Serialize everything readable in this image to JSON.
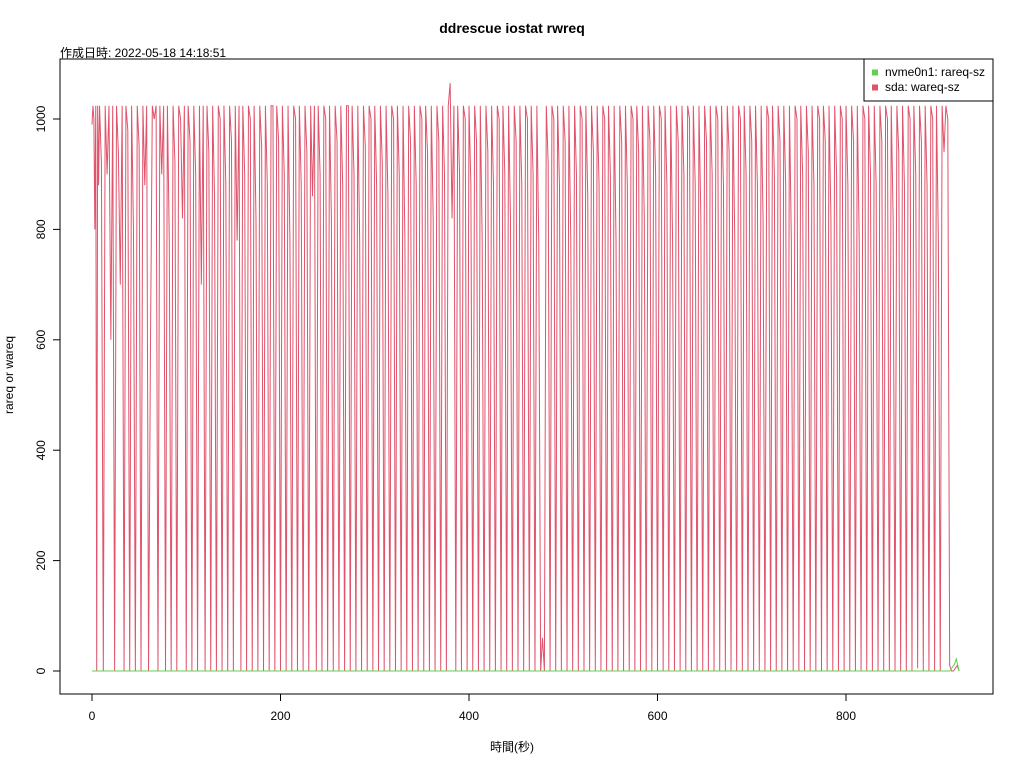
{
  "chart_data": {
    "type": "line",
    "title": "ddrescue iostat rwreq",
    "subtitle": "作成日時: 2022-05-18 14:18:51",
    "xlabel": "時間(秒)",
    "ylabel": "rareq or wareq",
    "xlim": [
      0,
      920
    ],
    "ylim": [
      0,
      1065
    ],
    "x_ticks": [
      0,
      200,
      400,
      600,
      800
    ],
    "y_ticks": [
      0,
      200,
      400,
      600,
      800,
      1000
    ],
    "grid": false,
    "legend_position": "top-right",
    "series": [
      {
        "name": "nvme0n1: rareq-sz",
        "color": "#61d04f",
        "x": [
          0,
          40,
          80,
          120,
          160,
          200,
          240,
          280,
          320,
          360,
          400,
          440,
          480,
          520,
          560,
          600,
          640,
          680,
          720,
          760,
          800,
          840,
          880,
          900,
          905,
          910,
          915,
          917,
          920
        ],
        "values": [
          0,
          0,
          0,
          0,
          0,
          0,
          0,
          0,
          0,
          0,
          0,
          0,
          0,
          0,
          0,
          0,
          0,
          0,
          0,
          0,
          0,
          0,
          0,
          0,
          0,
          0,
          12,
          22,
          0
        ]
      },
      {
        "name": "sda: wareq-sz",
        "color": "#df536b",
        "x": [
          0,
          1,
          2,
          3,
          4,
          5,
          6,
          7,
          8,
          10,
          12,
          14,
          16,
          18,
          20,
          22,
          24,
          26,
          28,
          30,
          32,
          34,
          36,
          38,
          40,
          42,
          44,
          46,
          48,
          50,
          52,
          54,
          56,
          58,
          60,
          62,
          64,
          66,
          68,
          70,
          72,
          74,
          76,
          78,
          80,
          82,
          84,
          86,
          88,
          90,
          92,
          94,
          96,
          98,
          100,
          102,
          104,
          106,
          108,
          110,
          112,
          114,
          116,
          118,
          120,
          122,
          124,
          126,
          128,
          130,
          132,
          134,
          136,
          138,
          140,
          142,
          144,
          146,
          148,
          150,
          152,
          154,
          156,
          158,
          160,
          162,
          164,
          166,
          168,
          170,
          172,
          174,
          176,
          178,
          180,
          182,
          184,
          186,
          188,
          190,
          192,
          194,
          196,
          198,
          200,
          202,
          204,
          206,
          208,
          210,
          212,
          214,
          216,
          218,
          220,
          222,
          224,
          226,
          228,
          230,
          232,
          234,
          236,
          238,
          240,
          242,
          244,
          246,
          248,
          250,
          252,
          254,
          256,
          258,
          260,
          262,
          264,
          266,
          268,
          270,
          272,
          274,
          276,
          278,
          280,
          282,
          284,
          286,
          288,
          290,
          292,
          294,
          296,
          298,
          300,
          302,
          304,
          306,
          308,
          310,
          312,
          314,
          316,
          318,
          320,
          322,
          324,
          326,
          328,
          330,
          332,
          334,
          336,
          338,
          340,
          342,
          344,
          346,
          348,
          350,
          352,
          354,
          356,
          358,
          360,
          362,
          364,
          366,
          368,
          370,
          372,
          374,
          376,
          378,
          380,
          382,
          384,
          386,
          388,
          390,
          392,
          394,
          396,
          398,
          400,
          402,
          404,
          406,
          408,
          410,
          412,
          414,
          416,
          418,
          420,
          422,
          424,
          426,
          428,
          430,
          432,
          434,
          436,
          438,
          440,
          442,
          444,
          446,
          448,
          450,
          452,
          454,
          456,
          458,
          460,
          462,
          464,
          466,
          468,
          470,
          472,
          474,
          476,
          478,
          480,
          482,
          484,
          486,
          488,
          490,
          492,
          494,
          496,
          498,
          500,
          502,
          504,
          506,
          508,
          510,
          512,
          514,
          516,
          518,
          520,
          522,
          524,
          526,
          528,
          530,
          532,
          534,
          536,
          538,
          540,
          542,
          544,
          546,
          548,
          550,
          552,
          554,
          556,
          558,
          560,
          562,
          564,
          566,
          568,
          570,
          572,
          574,
          576,
          578,
          580,
          582,
          584,
          586,
          588,
          590,
          592,
          594,
          596,
          598,
          600,
          602,
          604,
          606,
          608,
          610,
          612,
          614,
          616,
          618,
          620,
          622,
          624,
          626,
          628,
          630,
          632,
          634,
          636,
          638,
          640,
          642,
          644,
          646,
          648,
          650,
          652,
          654,
          656,
          658,
          660,
          662,
          664,
          666,
          668,
          670,
          672,
          674,
          676,
          678,
          680,
          682,
          684,
          686,
          688,
          690,
          692,
          694,
          696,
          698,
          700,
          702,
          704,
          706,
          708,
          710,
          712,
          714,
          716,
          718,
          720,
          722,
          724,
          726,
          728,
          730,
          732,
          734,
          736,
          738,
          740,
          742,
          744,
          746,
          748,
          750,
          752,
          754,
          756,
          758,
          760,
          762,
          764,
          766,
          768,
          770,
          772,
          774,
          776,
          778,
          780,
          782,
          784,
          786,
          788,
          790,
          792,
          794,
          796,
          798,
          800,
          802,
          804,
          806,
          808,
          810,
          812,
          814,
          816,
          818,
          820,
          822,
          824,
          826,
          828,
          830,
          832,
          834,
          836,
          838,
          840,
          842,
          844,
          846,
          848,
          850,
          852,
          854,
          856,
          858,
          860,
          862,
          864,
          866,
          868,
          870,
          872,
          874,
          876,
          878,
          880,
          882,
          884,
          886,
          888,
          890,
          892,
          894,
          896,
          898,
          900,
          902,
          904,
          906,
          908,
          910,
          912,
          914,
          916,
          918,
          920
        ],
        "values": [
          990,
          1024,
          1000,
          800,
          1024,
          0,
          1024,
          880,
          1024,
          920,
          0,
          1024,
          900,
          1024,
          600,
          1024,
          0,
          1024,
          940,
          700,
          1024,
          0,
          1024,
          980,
          0,
          1024,
          800,
          0,
          1024,
          950,
          0,
          1024,
          880,
          1024,
          0,
          580,
          1024,
          1000,
          1024,
          0,
          1024,
          900,
          1024,
          0,
          1024,
          780,
          0,
          1024,
          920,
          0,
          1024,
          1000,
          820,
          1024,
          0,
          1024,
          960,
          0,
          1024,
          900,
          0,
          1024,
          700,
          1024,
          0,
          1024,
          940,
          0,
          1024,
          860,
          0,
          1024,
          1000,
          0,
          1024,
          880,
          0,
          1024,
          960,
          0,
          1024,
          780,
          1024,
          0,
          1024,
          900,
          0,
          1024,
          1000,
          0,
          1024,
          820,
          0,
          1024,
          950,
          0,
          1024,
          880,
          0,
          1024,
          1024,
          0,
          1024,
          960,
          0,
          1024,
          900,
          0,
          1024,
          780,
          0,
          1024,
          1000,
          0,
          1024,
          880,
          0,
          1024,
          940,
          0,
          1024,
          860,
          1024,
          0,
          1024,
          900,
          0,
          1024,
          1000,
          0,
          1024,
          820,
          0,
          1024,
          960,
          0,
          1024,
          880,
          0,
          1024,
          1024,
          0,
          1024,
          900,
          0,
          1024,
          780,
          0,
          1024,
          950,
          0,
          1024,
          1000,
          0,
          1024,
          880,
          0,
          1024,
          920,
          0,
          1024,
          860,
          0,
          1024,
          1000,
          0,
          1024,
          900,
          0,
          1024,
          780,
          0,
          1024,
          960,
          0,
          1024,
          880,
          0,
          1024,
          1000,
          0,
          1024,
          940,
          0,
          1024,
          820,
          0,
          1024,
          960,
          0,
          1024,
          900,
          0,
          1024,
          1065,
          820,
          1024,
          0,
          1024,
          900,
          0,
          1024,
          1000,
          0,
          1024,
          880,
          0,
          1024,
          960,
          0,
          1024,
          780,
          0,
          1024,
          940,
          0,
          1024,
          880,
          0,
          1024,
          1000,
          0,
          1024,
          900,
          0,
          1024,
          820,
          0,
          1024,
          960,
          0,
          1024,
          880,
          0,
          1024,
          1000,
          0,
          1024,
          900,
          0,
          1024,
          780,
          0,
          60,
          0,
          1024,
          920,
          0,
          1024,
          1000,
          0,
          1024,
          880,
          0,
          1024,
          960,
          0,
          1024,
          780,
          0,
          1024,
          900,
          0,
          1024,
          1000,
          0,
          1024,
          860,
          0,
          1024,
          940,
          0,
          1024,
          880,
          0,
          1024,
          1000,
          0,
          1024,
          900,
          0,
          1024,
          780,
          0,
          1024,
          960,
          0,
          1024,
          880,
          0,
          1024,
          1000,
          0,
          1024,
          940,
          0,
          1024,
          820,
          0,
          1024,
          960,
          0,
          1024,
          900,
          0,
          1024,
          1000,
          0,
          1024,
          880,
          0,
          1024,
          780,
          0,
          1024,
          960,
          0,
          1024,
          900,
          0,
          1024,
          1000,
          0,
          1024,
          880,
          0,
          1024,
          820,
          0,
          1024,
          960,
          0,
          1024,
          900,
          0,
          1024,
          1000,
          0,
          1024,
          880,
          0,
          1024,
          940,
          0,
          1024,
          780,
          0,
          1024,
          1000,
          0,
          1024,
          900,
          0,
          1024,
          960,
          0,
          1024,
          880,
          0,
          1024,
          820,
          0,
          1024,
          1000,
          0,
          1024,
          900,
          0,
          1024,
          960,
          0,
          1024,
          880,
          0,
          1024,
          780,
          0,
          1024,
          1000,
          0,
          1024,
          900,
          0,
          1024,
          940,
          0,
          1024,
          880,
          0,
          1024,
          1000,
          0,
          1024,
          960,
          0,
          1024,
          820,
          0,
          1024,
          900,
          0,
          1024,
          1000,
          0,
          1024,
          880,
          0,
          1024,
          960,
          0,
          1024,
          780,
          0,
          1024,
          1000,
          0,
          1024,
          900,
          0,
          1024,
          880,
          0,
          1024,
          960,
          0,
          1024,
          1000,
          0,
          1024,
          820,
          0,
          1024,
          940,
          0,
          1024,
          880,
          0,
          1024,
          1000,
          0,
          1024,
          900,
          5,
          1024,
          960,
          0,
          1024,
          880,
          0,
          1024,
          1000,
          0,
          1024,
          780,
          0,
          1024,
          940,
          1024,
          1000,
          10,
          0,
          0,
          5,
          10,
          0
        ]
      }
    ]
  }
}
